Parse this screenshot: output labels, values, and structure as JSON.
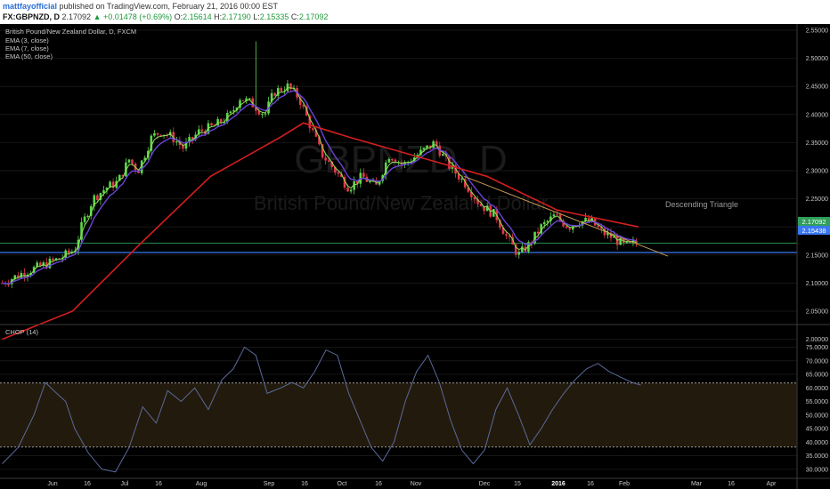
{
  "header": {
    "author": "mattfayofficial",
    "published_text": "published on TradingView.com, February 21, 2016 00:00 EST",
    "symbol": "FX:GBPNZD, D",
    "last_price": "2.17092",
    "change": "+0.01478 (+0.69%)",
    "ohlc": {
      "o_label": "O:",
      "o": "2.15614",
      "h_label": "H:",
      "h": "2.17190",
      "l_label": "L:",
      "l": "2.15335",
      "c_label": "C:",
      "c": "2.17092"
    }
  },
  "legend": {
    "title": "British Pound/New Zealand Dollar, D, FXCM",
    "ema3": "EMA (3, close)",
    "ema7": "EMA (7, close)",
    "ema50": "EMA (50, close)",
    "chop": "CHOP (14)"
  },
  "watermark": {
    "symbol": "GBPNZD, D",
    "name": "British Pound/New Zealand Dollar"
  },
  "annotation": "Descending Triangle",
  "badges": {
    "price": "2.17092",
    "support": "2.15438"
  },
  "colors": {
    "bg": "#000000",
    "up": "#5cd64a",
    "down": "#e0394a",
    "ema3": "#8ee05a",
    "ema7": "#6a44d8",
    "ema50": "#d41e1e",
    "support": "#3a78f2",
    "price_line": "#2e9e5a",
    "trendline": "#c79a55",
    "chop": "#5a6a9a",
    "band": "#221a0c",
    "axis_text": "#c8c8c8"
  },
  "chart_data": [
    {
      "type": "candlestick",
      "title": "British Pound/New Zealand Dollar, D, FXCM",
      "x_tick_labels": [
        "Jun",
        "16",
        "Jul",
        "16",
        "Aug",
        "Sep",
        "16",
        "Oct",
        "16",
        "Nov",
        "Dec",
        "15",
        "2016",
        "16",
        "Feb",
        "Mar",
        "16",
        "Apr"
      ],
      "y_tick_labels": [
        "2.55000",
        "2.50000",
        "2.45000",
        "2.40000",
        "2.35000",
        "2.30000",
        "2.25000",
        "2.20000",
        "2.15000",
        "2.10000",
        "2.05000",
        "2.00000"
      ],
      "ylim": [
        1.97,
        2.56
      ],
      "support_level": 2.15438,
      "last_price": 2.17092,
      "close_path": [
        [
          "2015-05-15",
          2.1
        ],
        [
          "2015-05-25",
          2.12
        ],
        [
          "2015-06-01",
          2.13
        ],
        [
          "2015-06-10",
          2.145
        ],
        [
          "2015-06-16",
          2.16
        ],
        [
          "2015-06-19",
          2.2
        ],
        [
          "2015-06-24",
          2.25
        ],
        [
          "2015-06-30",
          2.27
        ],
        [
          "2015-07-05",
          2.28
        ],
        [
          "2015-07-10",
          2.32
        ],
        [
          "2015-07-14",
          2.3
        ],
        [
          "2015-07-20",
          2.36
        ],
        [
          "2015-07-24",
          2.37
        ],
        [
          "2015-07-29",
          2.36
        ],
        [
          "2015-08-03",
          2.34
        ],
        [
          "2015-08-10",
          2.37
        ],
        [
          "2015-08-17",
          2.38
        ],
        [
          "2015-08-24",
          2.4
        ],
        [
          "2015-08-28",
          2.43
        ],
        [
          "2015-09-02",
          2.42
        ],
        [
          "2015-09-08",
          2.4
        ],
        [
          "2015-09-12",
          2.44
        ],
        [
          "2015-09-18",
          2.45
        ],
        [
          "2015-09-23",
          2.43
        ],
        [
          "2015-09-28",
          2.38
        ],
        [
          "2015-10-03",
          2.33
        ],
        [
          "2015-10-09",
          2.3
        ],
        [
          "2015-10-15",
          2.27
        ],
        [
          "2015-10-21",
          2.29
        ],
        [
          "2015-10-27",
          2.27
        ],
        [
          "2015-11-02",
          2.33
        ],
        [
          "2015-11-08",
          2.31
        ],
        [
          "2015-11-15",
          2.33
        ],
        [
          "2015-11-22",
          2.35
        ],
        [
          "2015-11-28",
          2.31
        ],
        [
          "2015-12-05",
          2.28
        ],
        [
          "2015-12-12",
          2.24
        ],
        [
          "2015-12-19",
          2.22
        ],
        [
          "2015-12-24",
          2.18
        ],
        [
          "2015-12-29",
          2.15
        ],
        [
          "2016-01-03",
          2.17
        ],
        [
          "2016-01-08",
          2.2
        ],
        [
          "2016-01-14",
          2.22
        ],
        [
          "2016-01-20",
          2.2
        ],
        [
          "2016-01-25",
          2.21
        ],
        [
          "2016-01-30",
          2.21
        ],
        [
          "2016-02-04",
          2.19
        ],
        [
          "2016-02-09",
          2.18
        ],
        [
          "2016-02-14",
          2.165
        ],
        [
          "2016-02-19",
          2.1709
        ]
      ],
      "spikes": [
        [
          "2015-09-04",
          2.53
        ]
      ],
      "ema50_path": [
        [
          "2015-05-15",
          2.0
        ],
        [
          "2015-06-15",
          2.05
        ],
        [
          "2015-07-15",
          2.17
        ],
        [
          "2015-08-15",
          2.29
        ],
        [
          "2015-09-15",
          2.36
        ],
        [
          "2015-09-25",
          2.385
        ],
        [
          "2015-10-15",
          2.36
        ],
        [
          "2015-11-10",
          2.33
        ],
        [
          "2015-12-15",
          2.29
        ],
        [
          "2016-01-15",
          2.23
        ],
        [
          "2016-02-20",
          2.2
        ]
      ],
      "trendlines": [
        {
          "from": [
            "2015-12-05",
            2.29
          ],
          "to": [
            "2016-03-04",
            2.148
          ]
        }
      ]
    },
    {
      "type": "line",
      "title": "CHOP (14)",
      "y_tick_labels": [
        "75.0000",
        "70.0000",
        "65.0000",
        "60.0000",
        "55.0000",
        "50.0000",
        "45.0000",
        "40.0000",
        "35.0000",
        "30.0000"
      ],
      "ylim": [
        27,
        77
      ],
      "band": [
        38.2,
        61.8
      ],
      "series": [
        {
          "values": [
            [
              "2015-05-15",
              32
            ],
            [
              "2015-05-22",
              38
            ],
            [
              "2015-05-29",
              50
            ],
            [
              "2015-06-03",
              62
            ],
            [
              "2015-06-08",
              58
            ],
            [
              "2015-06-12",
              55
            ],
            [
              "2015-06-16",
              45
            ],
            [
              "2015-06-22",
              36
            ],
            [
              "2015-06-28",
              30
            ],
            [
              "2015-07-04",
              29
            ],
            [
              "2015-07-10",
              38
            ],
            [
              "2015-07-16",
              53
            ],
            [
              "2015-07-22",
              47
            ],
            [
              "2015-07-27",
              59
            ],
            [
              "2015-08-02",
              55
            ],
            [
              "2015-08-08",
              60
            ],
            [
              "2015-08-14",
              52
            ],
            [
              "2015-08-20",
              63
            ],
            [
              "2015-08-25",
              67
            ],
            [
              "2015-08-30",
              75
            ],
            [
              "2015-09-04",
              72
            ],
            [
              "2015-09-09",
              58
            ],
            [
              "2015-09-15",
              60
            ],
            [
              "2015-09-20",
              62
            ],
            [
              "2015-09-25",
              60
            ],
            [
              "2015-09-30",
              66
            ],
            [
              "2015-10-05",
              74
            ],
            [
              "2015-10-10",
              72
            ],
            [
              "2015-10-15",
              58
            ],
            [
              "2015-10-20",
              48
            ],
            [
              "2015-10-25",
              38
            ],
            [
              "2015-10-30",
              33
            ],
            [
              "2015-11-04",
              40
            ],
            [
              "2015-11-09",
              55
            ],
            [
              "2015-11-14",
              66
            ],
            [
              "2015-11-19",
              72
            ],
            [
              "2015-11-24",
              62
            ],
            [
              "2015-11-29",
              48
            ],
            [
              "2015-12-04",
              37
            ],
            [
              "2015-12-09",
              32
            ],
            [
              "2015-12-14",
              37
            ],
            [
              "2015-12-19",
              52
            ],
            [
              "2015-12-24",
              60
            ],
            [
              "2015-12-29",
              50
            ],
            [
              "2016-01-03",
              39
            ],
            [
              "2016-01-08",
              45
            ],
            [
              "2016-01-13",
              52
            ],
            [
              "2016-01-18",
              58
            ],
            [
              "2016-01-23",
              63
            ],
            [
              "2016-01-28",
              67
            ],
            [
              "2016-02-02",
              69
            ],
            [
              "2016-02-07",
              66
            ],
            [
              "2016-02-12",
              64
            ],
            [
              "2016-02-17",
              62
            ],
            [
              "2016-02-21",
              61
            ]
          ]
        }
      ]
    }
  ]
}
